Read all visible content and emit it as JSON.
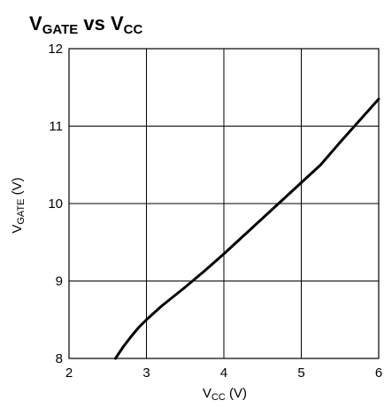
{
  "chart_data": {
    "type": "line",
    "title": {
      "main": "V",
      "sub": "GATE",
      "middle": " vs V",
      "sub2": "CC"
    },
    "xlabel": {
      "main": "V",
      "sub": "CC",
      "unit": " (V)"
    },
    "ylabel": {
      "main": "V",
      "sub": "GATE",
      "unit": " (V)"
    },
    "xlim": [
      2,
      6
    ],
    "ylim": [
      8,
      12
    ],
    "x_ticks": [
      "2",
      "3",
      "4",
      "5",
      "6"
    ],
    "y_ticks": [
      "8",
      "9",
      "10",
      "11",
      "12"
    ],
    "grid": true,
    "line_color": "#000000",
    "series": [
      {
        "x": [
          2.6,
          2.7,
          2.8,
          2.9,
          3.0,
          3.1,
          3.2,
          3.3,
          3.4,
          3.5,
          3.75,
          4.0,
          4.25,
          4.5,
          4.75,
          5.0,
          5.25,
          5.5,
          5.75,
          6.0
        ],
        "y": [
          8.0,
          8.15,
          8.28,
          8.4,
          8.5,
          8.59,
          8.68,
          8.76,
          8.84,
          8.92,
          9.13,
          9.35,
          9.58,
          9.81,
          10.04,
          10.27,
          10.5,
          10.79,
          11.07,
          11.35
        ]
      }
    ]
  }
}
